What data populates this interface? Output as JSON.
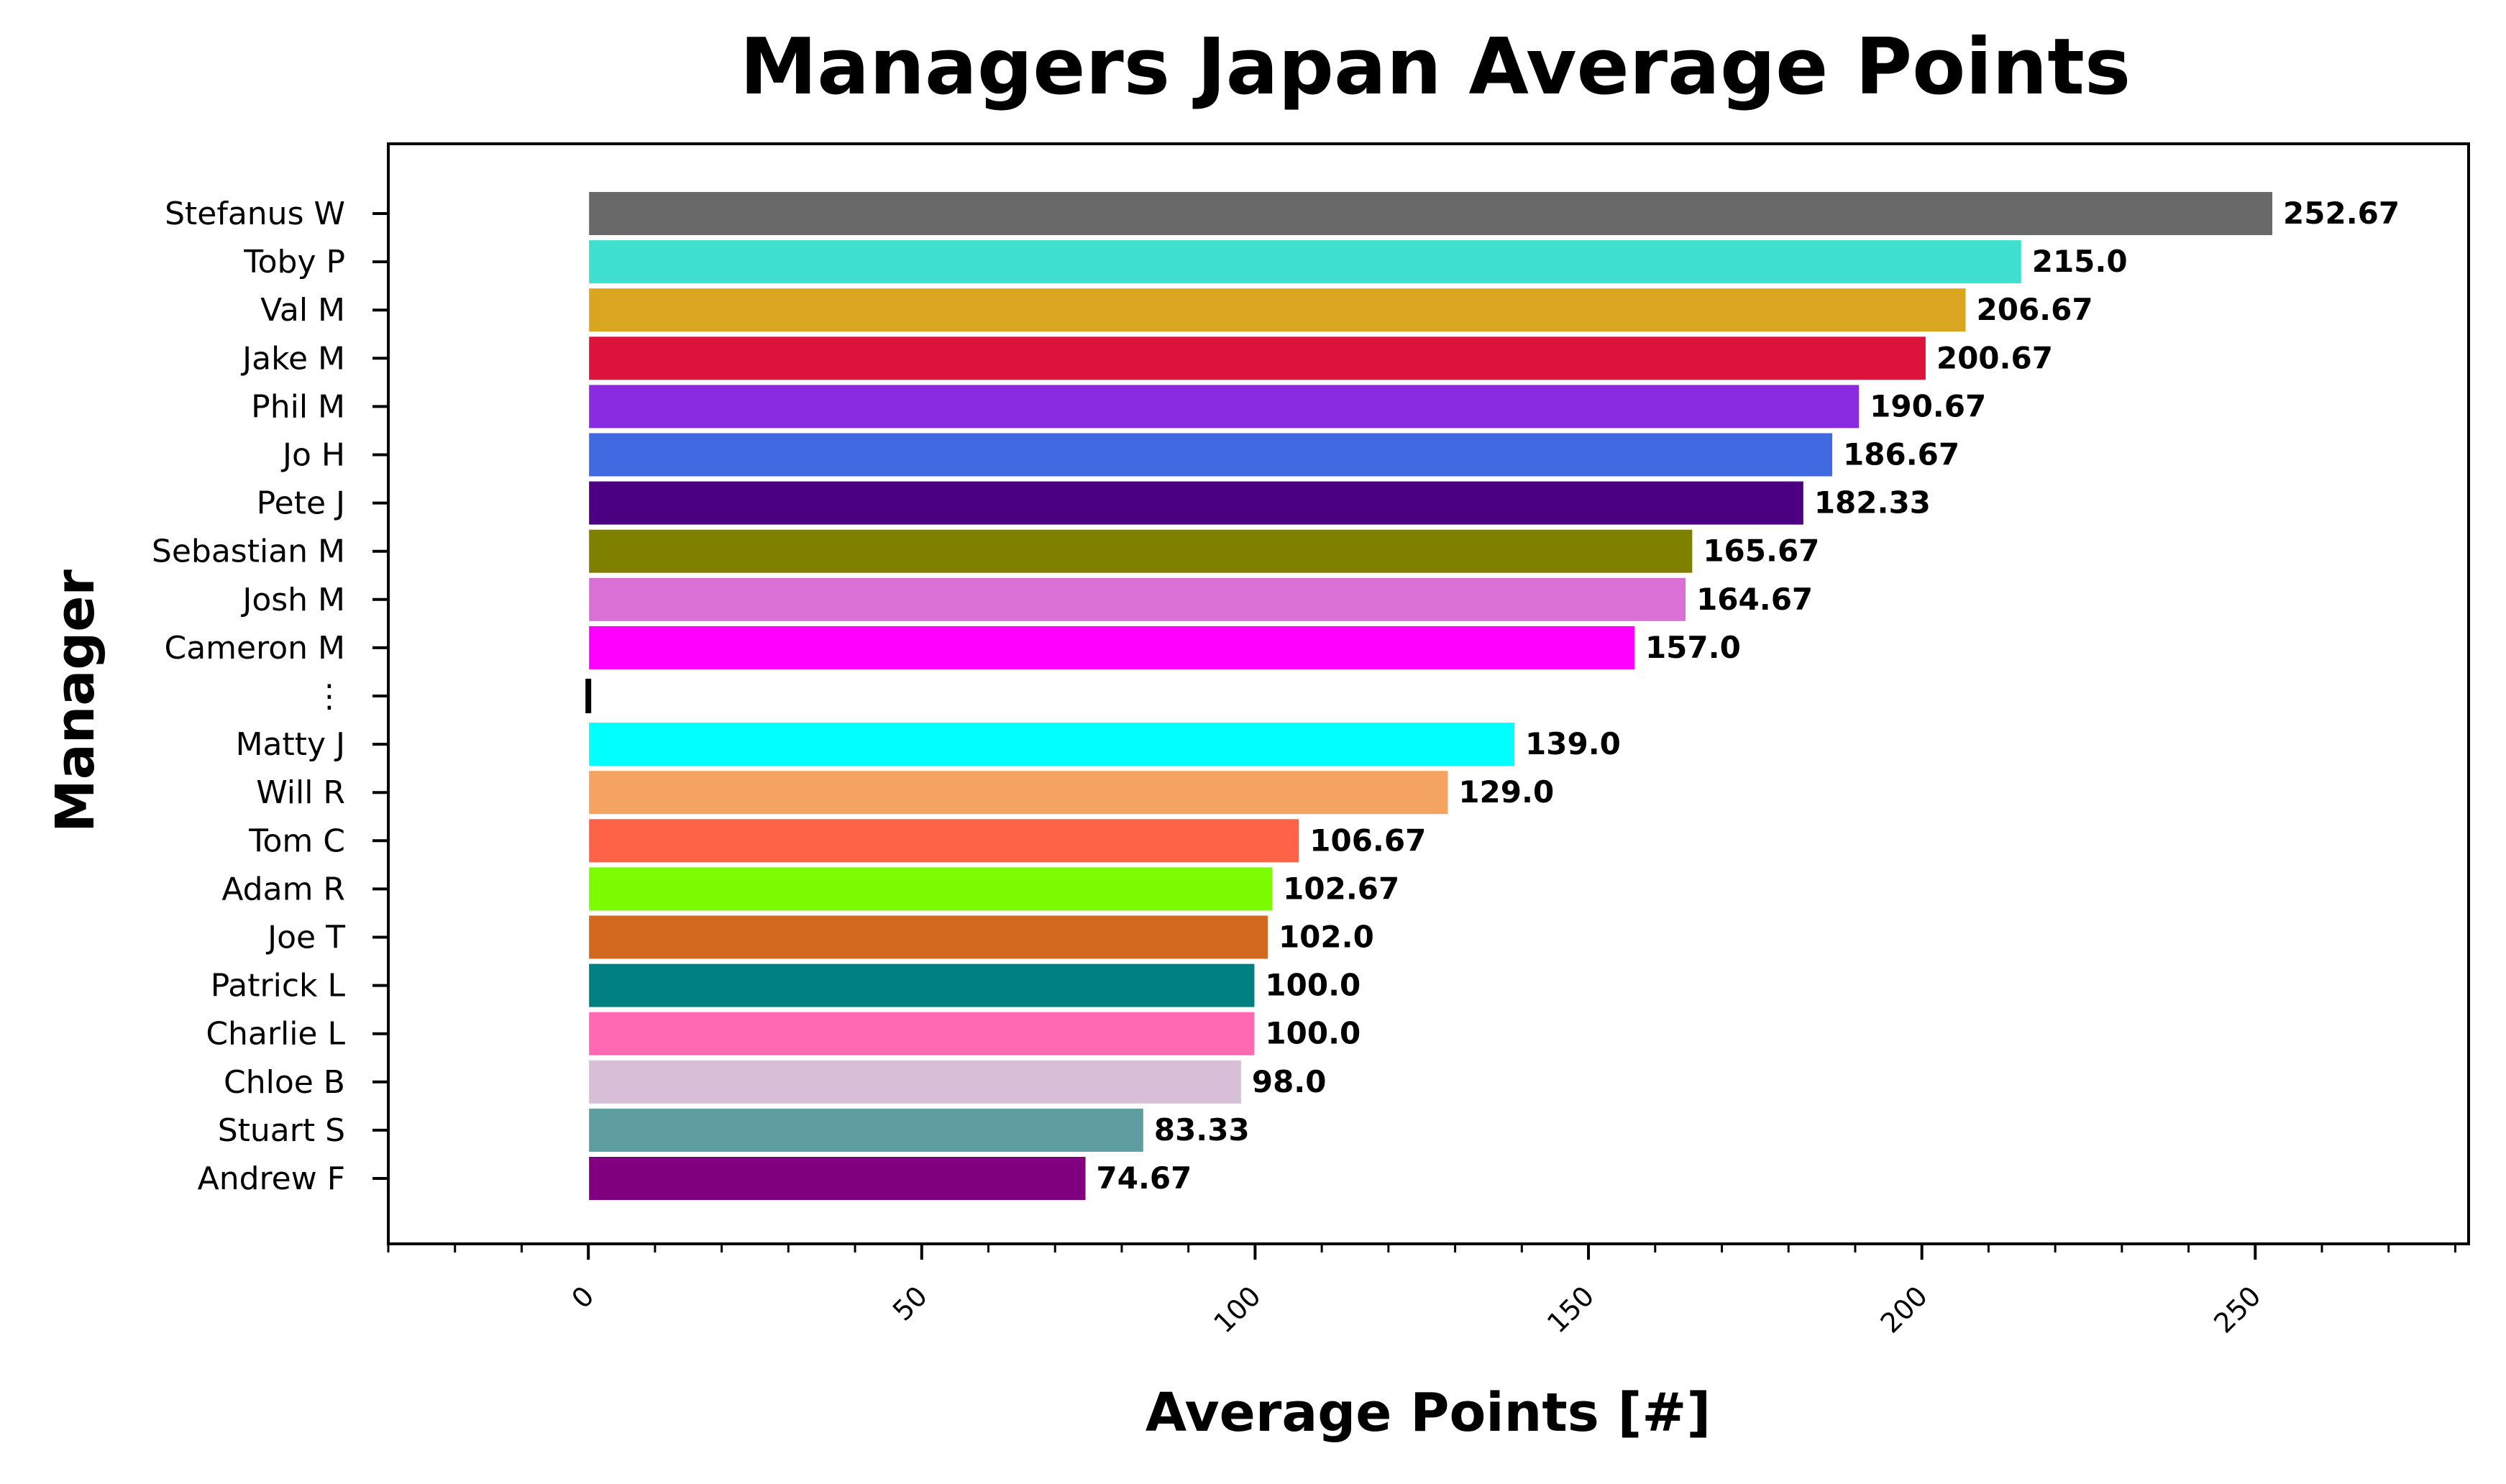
{
  "chart_data": {
    "type": "bar",
    "orientation": "horizontal",
    "title": "Managers Japan Average Points",
    "xlabel": "Average Points [#]",
    "ylabel": "Manager",
    "xlim": [
      -30,
      282
    ],
    "xticks": [
      0,
      50,
      100,
      150,
      200,
      250
    ],
    "grid": false,
    "legend": "none",
    "categories": [
      "Stefanus W",
      "Toby P",
      "Val M",
      "Jake M",
      "Phil M",
      "Jo H",
      "Pete J",
      "Sebastian M",
      "Josh M",
      "Cameron M",
      "⋮",
      "Matty J",
      "Will R",
      "Tom C",
      "Adam R",
      "Joe T",
      "Patrick L",
      "Charlie L",
      "Chloe B",
      "Stuart S",
      "Andrew F"
    ],
    "values": [
      252.67,
      215.0,
      206.67,
      200.67,
      190.67,
      186.67,
      182.33,
      165.67,
      164.67,
      157.0,
      null,
      139.0,
      129.0,
      106.67,
      102.67,
      102.0,
      100.0,
      100.0,
      98.0,
      83.33,
      74.67
    ],
    "value_labels": [
      "252.67",
      "215.0",
      "206.67",
      "200.67",
      "190.67",
      "186.67",
      "182.33",
      "165.67",
      "164.67",
      "157.0",
      "",
      "139.0",
      "129.0",
      "106.67",
      "102.67",
      "102.0",
      "100.0",
      "100.0",
      "98.0",
      "83.33",
      "74.67"
    ],
    "colors": [
      "#696969",
      "#40e0d0",
      "#daa520",
      "#dc143c",
      "#8a2be2",
      "#4169e1",
      "#4b0082",
      "#808000",
      "#da70d6",
      "#ff00ff",
      "#000000",
      "#00ffff",
      "#f4a460",
      "#ff6347",
      "#7cfc00",
      "#d2691e",
      "#008080",
      "#ff69b4",
      "#d8bfd8",
      "#5f9ea0",
      "#800080"
    ]
  }
}
